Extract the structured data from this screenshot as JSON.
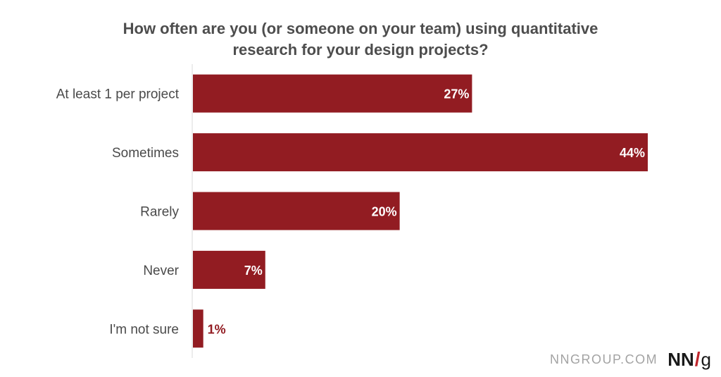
{
  "chart_data": {
    "type": "bar",
    "orientation": "horizontal",
    "title_lines": [
      "How often are you (or someone on your team) using quantitative",
      "research for your design projects?"
    ],
    "categories": [
      "At least 1 per project",
      "Sometimes",
      "Rarely",
      "Never",
      "I'm not sure"
    ],
    "values": [
      27,
      44,
      20,
      7,
      1
    ],
    "value_labels": [
      "27%",
      "44%",
      "20%",
      "7%",
      "1%"
    ],
    "xlim": [
      0,
      44
    ],
    "bar_color": "#921c22",
    "label_color_inside": "#ffffff",
    "label_color_outside": "#921c22"
  },
  "footer": {
    "site": "NNGROUP.COM",
    "logo_left": "N",
    "logo_mid": "N",
    "logo_slash": "/",
    "logo_right": "g"
  }
}
